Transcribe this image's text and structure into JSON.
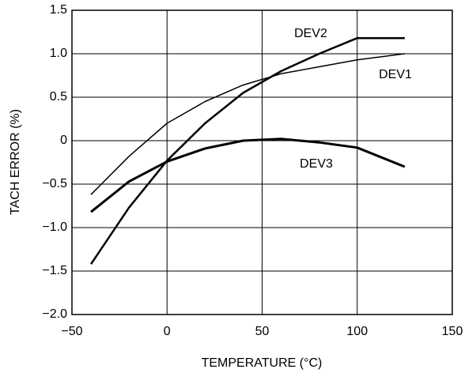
{
  "chart_data": {
    "type": "line",
    "xlabel": "TEMPERATURE (°C)",
    "ylabel": "TACH ERROR (%)",
    "x": [
      -40,
      -20,
      0,
      20,
      40,
      60,
      80,
      100,
      125
    ],
    "series": [
      {
        "name": "DEV1",
        "color": "#000000",
        "values": [
          -0.62,
          -0.18,
          0.2,
          0.45,
          0.64,
          0.77,
          0.85,
          0.93,
          1.0
        ]
      },
      {
        "name": "DEV2",
        "color": "#000000",
        "values": [
          -1.42,
          -0.77,
          -0.23,
          0.2,
          0.55,
          0.8,
          1.0,
          1.18,
          1.18
        ]
      },
      {
        "name": "DEV3",
        "color": "#000000",
        "values": [
          -0.82,
          -0.47,
          -0.24,
          -0.09,
          0.0,
          0.02,
          -0.02,
          -0.08,
          -0.3
        ]
      }
    ],
    "xlim": [
      -50,
      150
    ],
    "xticks": [
      {
        "value": -50,
        "label": "−50"
      },
      0,
      50,
      100,
      150
    ],
    "ylim": [
      -2,
      1.5
    ],
    "yticks": [
      {
        "value": -2,
        "label": "−2.0"
      },
      {
        "value": -1.5,
        "label": "−1.5"
      },
      {
        "value": -1,
        "label": "−1.0"
      },
      {
        "value": -0.5,
        "label": "−0.5"
      },
      0,
      {
        "value": 0.5,
        "label": "0.5"
      },
      {
        "value": 1,
        "label": "1.0"
      },
      {
        "value": 1.5,
        "label": "1.5"
      }
    ],
    "grid": true
  }
}
